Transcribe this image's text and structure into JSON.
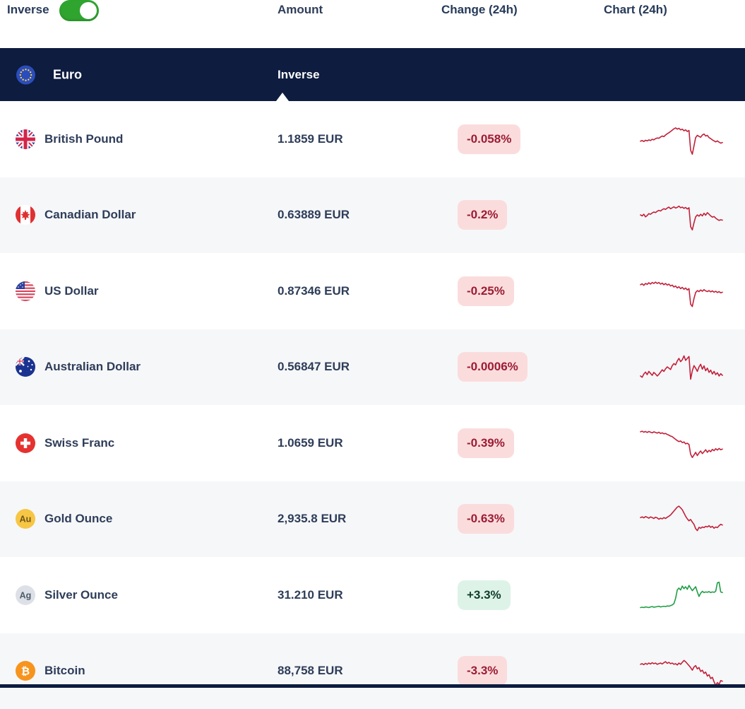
{
  "toolbar": {
    "inverse_label": "Inverse",
    "toggle_state": "on",
    "amount_header": "Amount",
    "change_header": "Change (24h)",
    "chart_header": "Chart (24h)"
  },
  "section": {
    "currency": "Euro",
    "column_label": "Inverse",
    "flag": "eu"
  },
  "rows": [
    {
      "name": "British Pound",
      "flag": "gb",
      "amount": "1.1859 EUR",
      "change": "-0.058%",
      "direction": "down",
      "spark": [
        44,
        46,
        43,
        47,
        45,
        48,
        46,
        50,
        48,
        52,
        54,
        53,
        57,
        60,
        58,
        63,
        67,
        70,
        74,
        78,
        82,
        85,
        81,
        84,
        79,
        81,
        76,
        79,
        74,
        77,
        16,
        4,
        30,
        55,
        62,
        59,
        56,
        63,
        66,
        60,
        62,
        55,
        52,
        48,
        45,
        42,
        45,
        41,
        38,
        40
      ]
    },
    {
      "name": "Canadian Dollar",
      "flag": "ca",
      "amount": "0.63889 EUR",
      "change": "-0.2%",
      "direction": "down",
      "spark": [
        50,
        47,
        52,
        44,
        48,
        54,
        52,
        56,
        59,
        57,
        61,
        64,
        62,
        66,
        69,
        67,
        71,
        74,
        69,
        72,
        75,
        71,
        73,
        77,
        72,
        74,
        70,
        73,
        68,
        72,
        14,
        4,
        26,
        44,
        50,
        46,
        52,
        47,
        55,
        49,
        57,
        52,
        47,
        43,
        45,
        40,
        36,
        33,
        35,
        34
      ]
    },
    {
      "name": "US Dollar",
      "flag": "us",
      "amount": "0.87346 EUR",
      "change": "-0.25%",
      "direction": "down",
      "spark": [
        70,
        73,
        68,
        74,
        71,
        76,
        72,
        77,
        74,
        78,
        74,
        77,
        72,
        75,
        70,
        74,
        69,
        72,
        66,
        69,
        63,
        66,
        60,
        64,
        58,
        62,
        56,
        60,
        54,
        58,
        10,
        3,
        28,
        46,
        52,
        49,
        54,
        50,
        55,
        51,
        49,
        52,
        48,
        51,
        47,
        50,
        46,
        49,
        45,
        47
      ]
    },
    {
      "name": "Australian Dollar",
      "flag": "au",
      "amount": "0.56847 EUR",
      "change": "-0.0006%",
      "direction": "down",
      "spark": [
        22,
        18,
        28,
        34,
        26,
        36,
        30,
        24,
        33,
        28,
        22,
        27,
        34,
        41,
        36,
        44,
        50,
        46,
        42,
        54,
        60,
        56,
        68,
        76,
        66,
        72,
        84,
        70,
        76,
        82,
        12,
        38,
        54,
        46,
        36,
        50,
        58,
        43,
        53,
        38,
        46,
        33,
        40,
        28,
        36,
        26,
        32,
        22,
        29,
        24
      ]
    },
    {
      "name": "Swiss Franc",
      "flag": "ch",
      "amount": "1.0659 EUR",
      "change": "-0.39%",
      "direction": "down",
      "spark": [
        85,
        87,
        84,
        86,
        83,
        86,
        84,
        82,
        85,
        83,
        81,
        84,
        80,
        82,
        79,
        80,
        77,
        75,
        72,
        70,
        66,
        62,
        58,
        55,
        57,
        52,
        54,
        48,
        50,
        46,
        16,
        6,
        14,
        22,
        12,
        20,
        26,
        18,
        24,
        30,
        22,
        28,
        24,
        31,
        27,
        33,
        29,
        34,
        30,
        32
      ]
    },
    {
      "name": "Gold Ounce",
      "flag": "gold",
      "amount": "2,935.8 EUR",
      "change": "-0.63%",
      "direction": "down",
      "spark": [
        54,
        56,
        53,
        57,
        55,
        52,
        56,
        54,
        51,
        55,
        53,
        49,
        52,
        50,
        54,
        51,
        55,
        58,
        62,
        68,
        74,
        80,
        86,
        89,
        84,
        78,
        68,
        58,
        50,
        44,
        48,
        40,
        33,
        20,
        14,
        24,
        21,
        25,
        23,
        27,
        25,
        29,
        24,
        27,
        21,
        25,
        23,
        29,
        33,
        31
      ]
    },
    {
      "name": "Silver Ounce",
      "flag": "silver",
      "amount": "31.210 EUR",
      "change": "+3.3%",
      "direction": "up",
      "spark": [
        12,
        13,
        12,
        14,
        13,
        12,
        14,
        15,
        13,
        14,
        15,
        16,
        14,
        15,
        16,
        15,
        17,
        16,
        18,
        20,
        24,
        40,
        66,
        72,
        66,
        78,
        70,
        76,
        68,
        80,
        72,
        64,
        70,
        76,
        60,
        46,
        56,
        62,
        58,
        60,
        59,
        61,
        58,
        60,
        59,
        62,
        88,
        90,
        60,
        58
      ]
    },
    {
      "name": "Bitcoin",
      "flag": "btc",
      "amount": "88,758 EUR",
      "change": "-3.3%",
      "direction": "down",
      "spark": [
        70,
        72,
        69,
        73,
        70,
        74,
        71,
        75,
        72,
        74,
        70,
        72,
        74,
        71,
        75,
        78,
        73,
        76,
        72,
        74,
        70,
        72,
        68,
        74,
        70,
        76,
        82,
        78,
        72,
        66,
        60,
        52,
        62,
        66,
        56,
        60,
        48,
        52,
        42,
        46,
        34,
        38,
        26,
        30,
        16,
        5,
        14,
        8,
        20,
        18
      ]
    }
  ],
  "colors": {
    "section_header_bg": "#0d1c3f",
    "row_alt_bg": "#f6f7f9",
    "text": "#2e3d59",
    "negative_badge_bg": "#fbdcdc",
    "negative_badge_text": "#9b1c34",
    "positive_badge_bg": "#def3e8",
    "positive_badge_text": "#0e3e2e",
    "spark_down": "#c22039",
    "spark_up": "#1f9e45",
    "toggle_on": "#2fa52f"
  }
}
